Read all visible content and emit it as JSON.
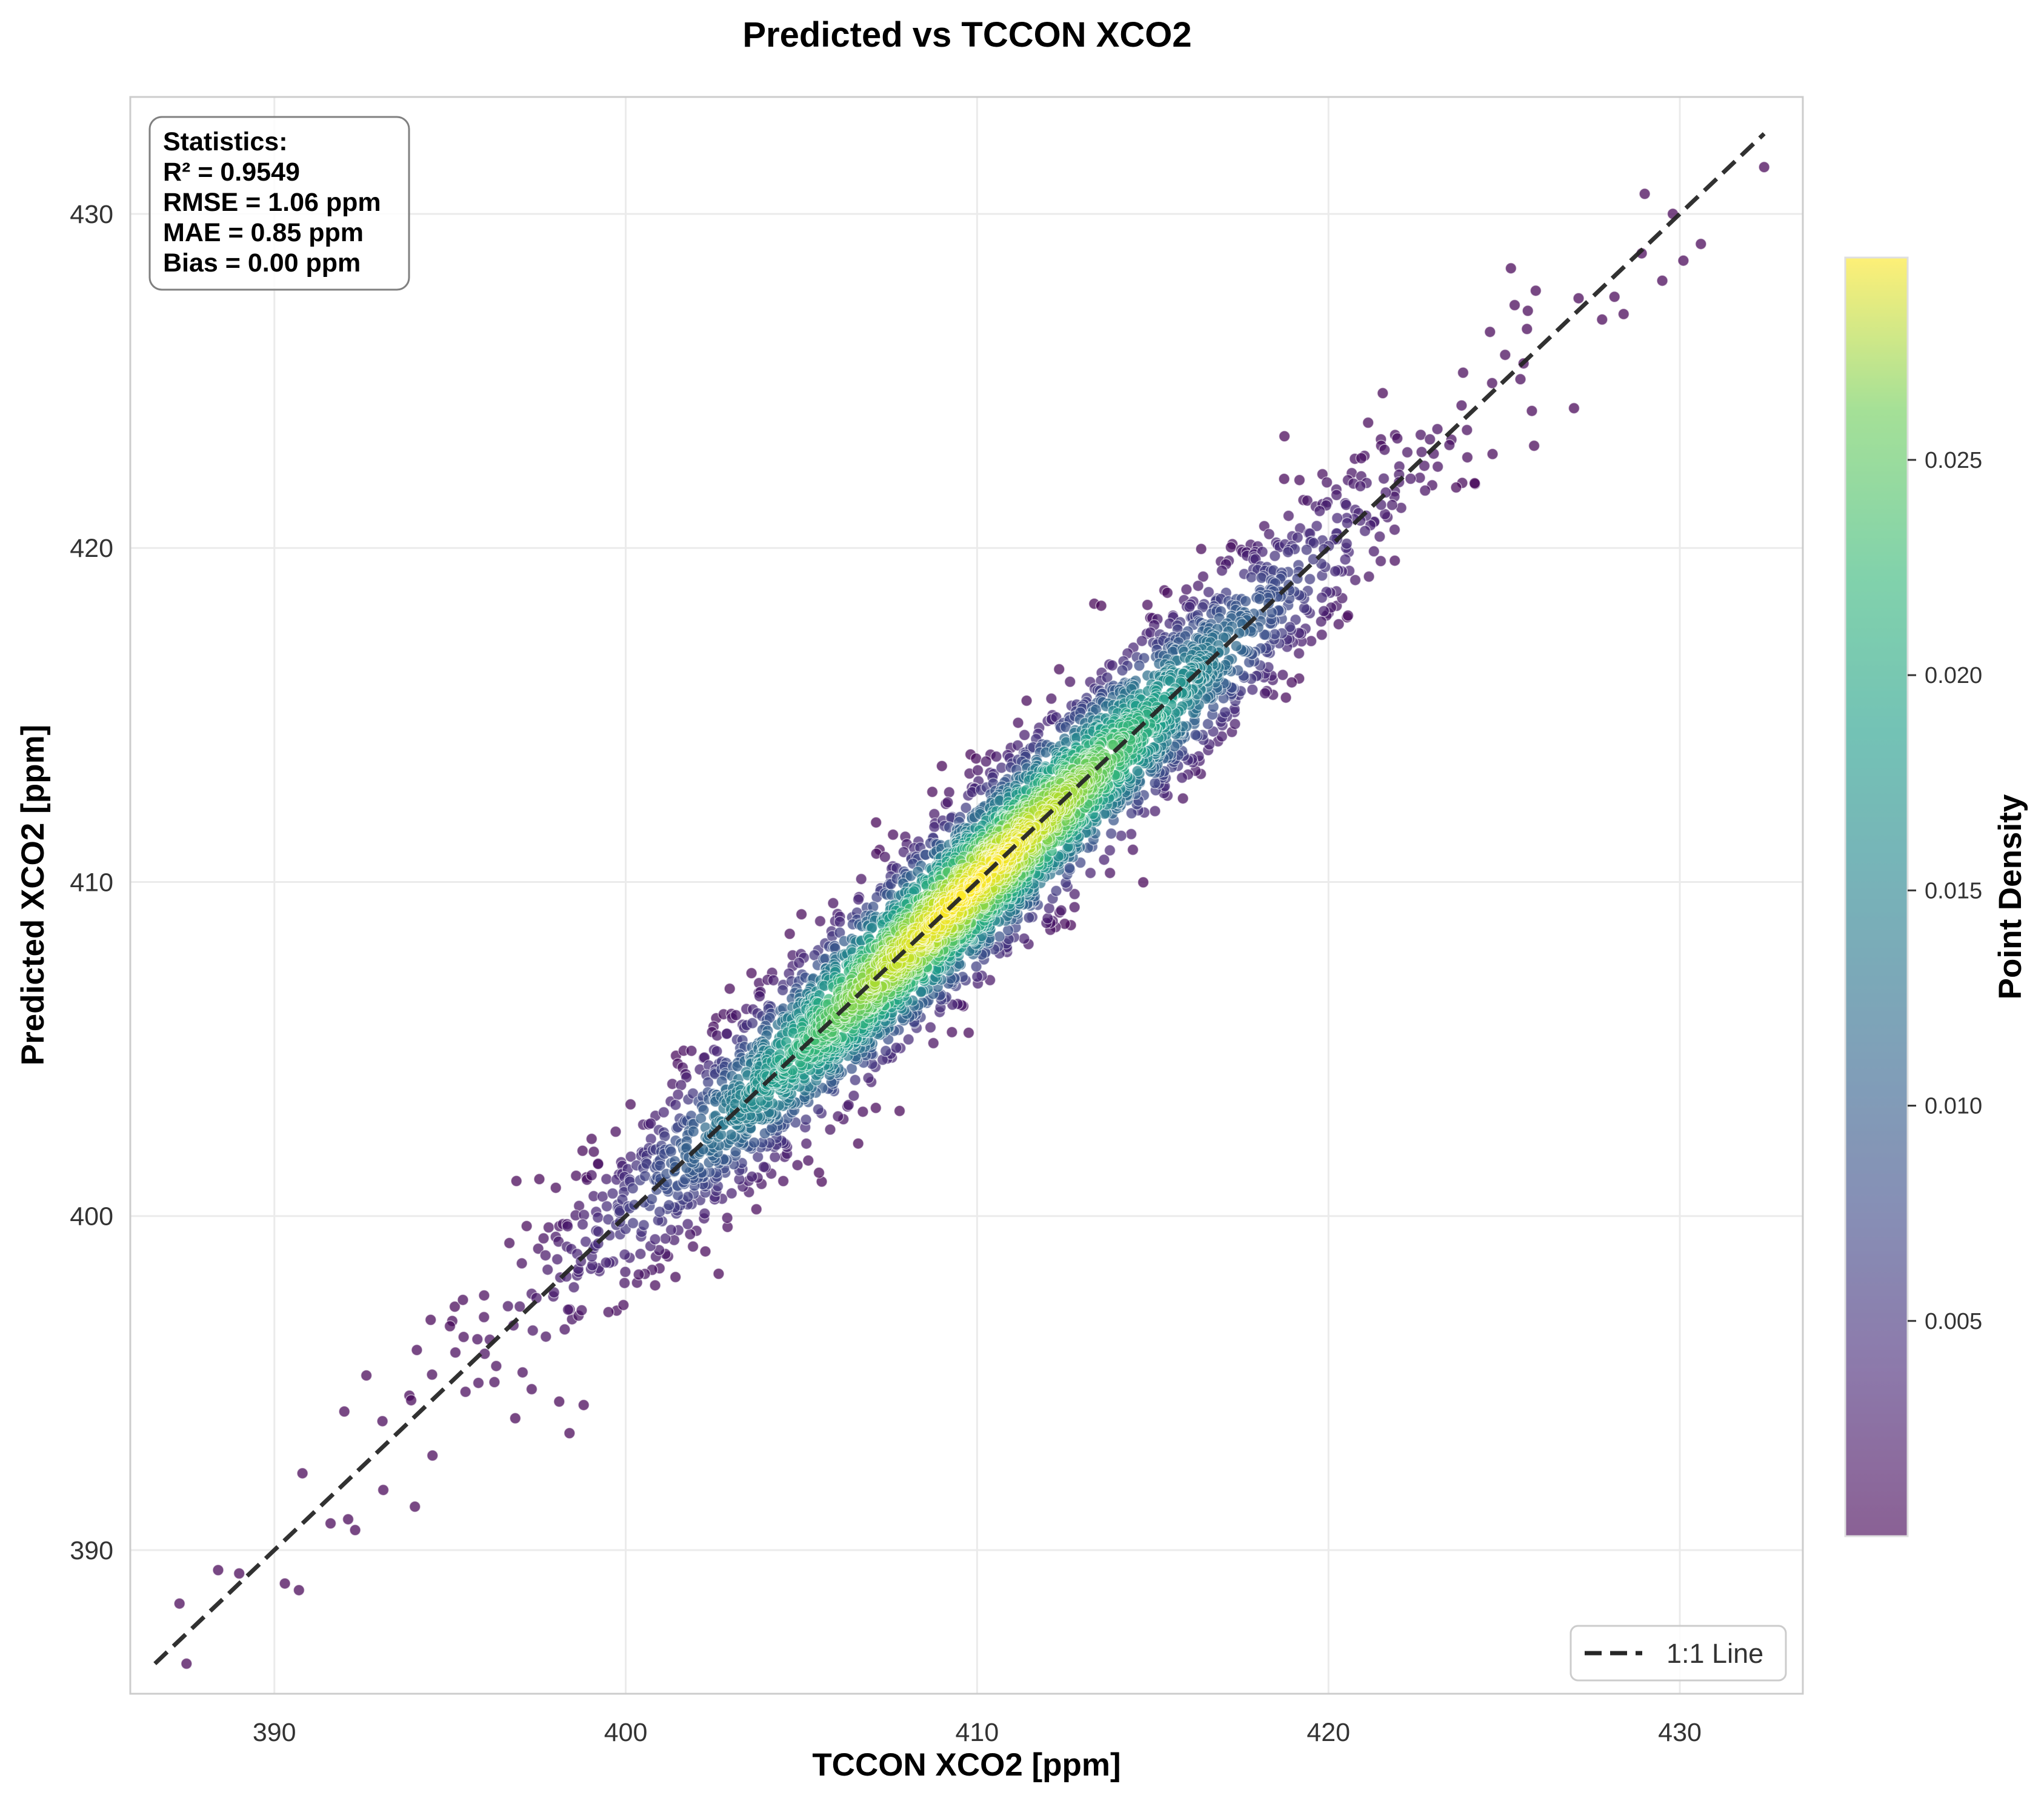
{
  "chart_data": {
    "type": "scatter",
    "title": "Predicted vs TCCON XCO2",
    "xlabel": "TCCON XCO2 [ppm]",
    "ylabel": "Predicted XCO2 [ppm]",
    "xlim": [
      385.9,
      433.5
    ],
    "ylim": [
      385.7,
      433.5
    ],
    "x_ticks": [
      390,
      400,
      410,
      420,
      430
    ],
    "y_ticks": [
      390,
      400,
      410,
      420,
      430
    ],
    "grid": true,
    "colorbar": {
      "label": "Point Density",
      "range": [
        0.0,
        0.0297
      ],
      "ticks": [
        0.005,
        0.01,
        0.015,
        0.02,
        0.025
      ],
      "tick_labels": [
        "0.005",
        "0.010",
        "0.015",
        "0.020",
        "0.025"
      ],
      "colormap": "viridis"
    },
    "statistics": {
      "heading": "Statistics:",
      "lines": [
        "R² = 0.9549",
        "RMSE = 1.06 ppm",
        "MAE = 0.85 ppm",
        "Bias = 0.00 ppm"
      ]
    },
    "reference_line": {
      "label": "1:1 Line",
      "from": [
        386.6,
        386.6
      ],
      "to": [
        432.4,
        432.4
      ],
      "style": "dashed"
    },
    "legend_position": "lower-right",
    "distribution": {
      "description_values": "points scattered along y = x",
      "center": [
        409.8,
        409.8
      ],
      "sd_along_line": 5.2,
      "sd_perpendicular_ppm": 1.06,
      "x_range": [
        387.5,
        432.4
      ]
    },
    "outliers": [
      [
        387.5,
        386.6
      ],
      [
        387.3,
        388.4
      ],
      [
        388.4,
        389.4
      ],
      [
        389.0,
        389.3
      ],
      [
        390.3,
        389.0
      ],
      [
        390.7,
        388.8
      ],
      [
        390.8,
        392.3
      ],
      [
        391.6,
        390.8
      ],
      [
        392.3,
        390.6
      ],
      [
        393.1,
        391.8
      ],
      [
        394.0,
        391.3
      ],
      [
        398.4,
        393.5
      ],
      [
        429.0,
        430.6
      ],
      [
        429.8,
        430.0
      ],
      [
        432.4,
        431.4
      ],
      [
        430.1,
        428.6
      ],
      [
        430.6,
        429.1
      ],
      [
        429.5,
        428.0
      ],
      [
        428.4,
        427.0
      ],
      [
        425.9,
        427.7
      ]
    ],
    "colors": {
      "line": "#262626",
      "grid": "#ebebeb",
      "frame": "#cccccc"
    }
  }
}
